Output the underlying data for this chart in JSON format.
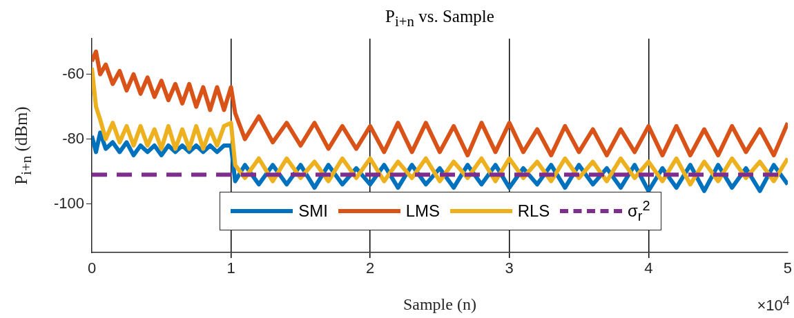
{
  "chart_data": {
    "type": "line",
    "title": "P$_{i+n}$ vs. Sample",
    "xlabel": "Sample (n)",
    "ylabel": "P$_{i+n}$ (dBm)",
    "annotations": [
      "×10$^{4}$"
    ],
    "x": [
      0,
      0.03,
      0.06,
      0.1,
      0.15,
      0.2,
      0.25,
      0.3,
      0.35,
      0.4,
      0.45,
      0.5,
      0.55,
      0.6,
      0.65,
      0.7,
      0.75,
      0.8,
      0.85,
      0.9,
      0.95,
      1,
      1.03,
      1.1,
      1.2,
      1.3,
      1.4,
      1.5,
      1.6,
      1.7,
      1.8,
      1.9,
      2,
      2.1,
      2.2,
      2.3,
      2.4,
      2.5,
      2.6,
      2.7,
      2.8,
      2.9,
      3,
      3.1,
      3.2,
      3.3,
      3.4,
      3.5,
      3.6,
      3.7,
      3.8,
      3.9,
      4,
      4.1,
      4.2,
      4.3,
      4.4,
      4.5,
      4.6,
      4.7,
      4.8,
      4.9,
      5
    ],
    "series": [
      {
        "name": "SMI",
        "color": "#0072bd",
        "values": [
          -79,
          -84,
          -78,
          -83,
          -81,
          -84,
          -81,
          -85,
          -82,
          -84,
          -82,
          -85,
          -82,
          -84,
          -82,
          -84,
          -82,
          -84,
          -82,
          -84,
          -82,
          -82,
          -93,
          -88,
          -94,
          -88,
          -94,
          -88,
          -95,
          -88,
          -94,
          -89,
          -94,
          -88,
          -95,
          -88,
          -94,
          -89,
          -95,
          -88,
          -94,
          -88,
          -95,
          -89,
          -94,
          -88,
          -95,
          -88,
          -94,
          -89,
          -95,
          -88,
          -96,
          -89,
          -95,
          -88,
          -96,
          -88,
          -95,
          -89,
          -96,
          -88,
          -94
        ]
      },
      {
        "name": "LMS",
        "color": "#d95319",
        "values": [
          -56,
          -53,
          -60,
          -57,
          -63,
          -59,
          -65,
          -60,
          -66,
          -61,
          -67,
          -62,
          -68,
          -63,
          -69,
          -63,
          -70,
          -64,
          -71,
          -64,
          -71,
          -64,
          -72,
          -80,
          -73,
          -81,
          -75,
          -82,
          -75,
          -83,
          -76,
          -83,
          -76,
          -84,
          -75,
          -84,
          -75,
          -84,
          -76,
          -85,
          -75,
          -84,
          -75,
          -84,
          -77,
          -85,
          -76,
          -84,
          -77,
          -85,
          -77,
          -84,
          -76,
          -85,
          -76,
          -85,
          -77,
          -85,
          -76,
          -84,
          -77,
          -85,
          -75
        ]
      },
      {
        "name": "RLS",
        "color": "#edb120",
        "values": [
          -58,
          -70,
          -74,
          -80,
          -75,
          -81,
          -76,
          -82,
          -76,
          -82,
          -77,
          -83,
          -76,
          -83,
          -77,
          -83,
          -76,
          -83,
          -77,
          -82,
          -76,
          -75,
          -88,
          -92,
          -86,
          -93,
          -86,
          -92,
          -87,
          -93,
          -86,
          -92,
          -86,
          -93,
          -87,
          -92,
          -86,
          -93,
          -87,
          -92,
          -86,
          -93,
          -86,
          -92,
          -87,
          -93,
          -86,
          -92,
          -87,
          -93,
          -86,
          -92,
          -87,
          -93,
          -86,
          -94,
          -87,
          -93,
          -86,
          -92,
          -87,
          -93,
          -86
        ]
      },
      {
        "name": "σ$_{r}$$^{2}$",
        "color": "#7e2f8e",
        "line_style": "dashed",
        "x": [
          0,
          5
        ],
        "values": [
          -91,
          -91
        ]
      }
    ],
    "xlim": [
      0,
      5
    ],
    "xticks": [
      0,
      1,
      2,
      3,
      4,
      5
    ],
    "ylim": [
      -115,
      -49
    ],
    "yticks": [
      -100,
      -80,
      -60
    ],
    "grid": "x",
    "legend": "bottom",
    "marker": "none"
  }
}
